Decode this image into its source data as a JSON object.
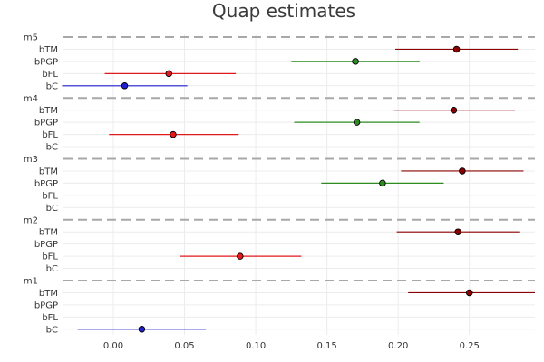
{
  "chart_data": {
    "type": "scatter",
    "title": "Quap estimates",
    "xlim": [
      -0.035,
      0.296
    ],
    "xticks": [
      0.0,
      0.05,
      0.1,
      0.15,
      0.2,
      0.25
    ],
    "xtick_labels": [
      "0.00",
      "0.05",
      "0.10",
      "0.15",
      "0.20",
      "0.25"
    ],
    "grid": true,
    "groups": [
      {
        "label": "m5",
        "rows": [
          {
            "label": "bTM",
            "mean": 0.241,
            "lower": 0.198,
            "upper": 0.284,
            "color": "#8b0000"
          },
          {
            "label": "bPGP",
            "mean": 0.17,
            "lower": 0.125,
            "upper": 0.215,
            "color": "#2e8b22"
          },
          {
            "label": "bFL",
            "mean": 0.039,
            "lower": -0.006,
            "upper": 0.086,
            "color": "#e31a1c"
          },
          {
            "label": "bC",
            "mean": 0.008,
            "lower": -0.036,
            "upper": 0.052,
            "color": "#1f1fcf"
          }
        ]
      },
      {
        "label": "m4",
        "rows": [
          {
            "label": "bTM",
            "mean": 0.239,
            "lower": 0.197,
            "upper": 0.282,
            "color": "#8b0000"
          },
          {
            "label": "bPGP",
            "mean": 0.171,
            "lower": 0.127,
            "upper": 0.215,
            "color": "#2e8b22"
          },
          {
            "label": "bFL",
            "mean": 0.042,
            "lower": -0.003,
            "upper": 0.088,
            "color": "#e31a1c"
          },
          {
            "label": "bC",
            "mean": null,
            "lower": null,
            "upper": null,
            "color": "#1f1fcf"
          }
        ]
      },
      {
        "label": "m3",
        "rows": [
          {
            "label": "bTM",
            "mean": 0.245,
            "lower": 0.202,
            "upper": 0.288,
            "color": "#8b0000"
          },
          {
            "label": "bPGP",
            "mean": 0.189,
            "lower": 0.146,
            "upper": 0.232,
            "color": "#2e8b22"
          },
          {
            "label": "bFL",
            "mean": null,
            "lower": null,
            "upper": null,
            "color": "#e31a1c"
          },
          {
            "label": "bC",
            "mean": null,
            "lower": null,
            "upper": null,
            "color": "#1f1fcf"
          }
        ]
      },
      {
        "label": "m2",
        "rows": [
          {
            "label": "bTM",
            "mean": 0.242,
            "lower": 0.199,
            "upper": 0.285,
            "color": "#8b0000"
          },
          {
            "label": "bPGP",
            "mean": null,
            "lower": null,
            "upper": null,
            "color": "#2e8b22"
          },
          {
            "label": "bFL",
            "mean": 0.089,
            "lower": 0.047,
            "upper": 0.132,
            "color": "#e31a1c"
          },
          {
            "label": "bC",
            "mean": null,
            "lower": null,
            "upper": null,
            "color": "#1f1fcf"
          }
        ]
      },
      {
        "label": "m1",
        "rows": [
          {
            "label": "bTM",
            "mean": 0.25,
            "lower": 0.207,
            "upper": 0.296,
            "color": "#8b0000"
          },
          {
            "label": "bPGP",
            "mean": null,
            "lower": null,
            "upper": null,
            "color": "#2e8b22"
          },
          {
            "label": "bFL",
            "mean": null,
            "lower": null,
            "upper": null,
            "color": "#e31a1c"
          },
          {
            "label": "bC",
            "mean": 0.02,
            "lower": -0.025,
            "upper": 0.065,
            "color": "#1f1fcf"
          }
        ]
      }
    ],
    "colors": {
      "separator": "#a8a8a8",
      "grid": "#ececec",
      "marker_edge": "#000000"
    }
  }
}
